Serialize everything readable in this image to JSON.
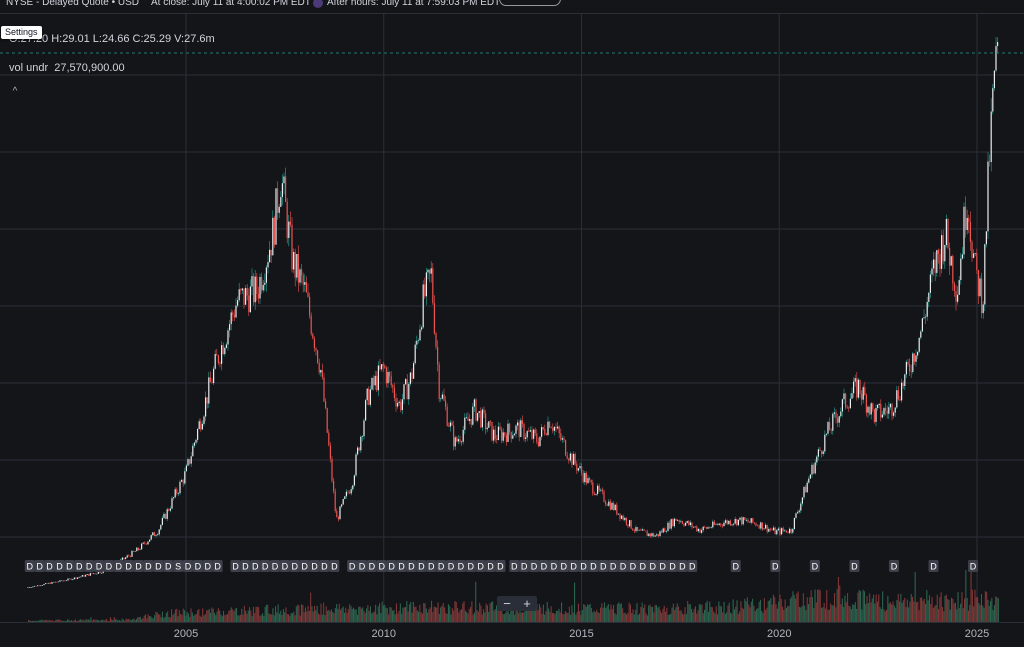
{
  "header": {
    "exchange_label": "NYSE - Delayed Quote • USD",
    "close_time": "At close: July 11 at 4:00:02 PM EDT",
    "after_hours_time": "After hours: July 11 at 7:59:03 PM EDT",
    "after_hours_icon": "moon-icon"
  },
  "legend": {
    "ohlc": "O:27.20  H:29.01  L:24.66  C:25.29  V:27.6m",
    "volume_label": "vol undr",
    "volume_value": "27,570,900.00"
  },
  "controls": {
    "settings_label": "Settings",
    "collapse_symbol": "^",
    "zoom_out_symbol": "−",
    "zoom_in_symbol": "+"
  },
  "colors": {
    "background": "#141519",
    "grid": "#2a2e39",
    "up": "#26a69a",
    "down": "#ef5350",
    "dividend_marker_bg": "#3d404a",
    "dividend_marker_text": "#ffffff",
    "last_price_line": "#26a69a"
  },
  "chart_data": {
    "type": "candlestick",
    "title": "",
    "xlabel": "",
    "ylabel": "",
    "x_ticks": [
      "2005",
      "2010",
      "2015",
      "2020",
      "2025"
    ],
    "x_range": [
      2001.0,
      2025.8
    ],
    "grid": true,
    "price_series_anchors": {
      "x": [
        2001.0,
        2002.0,
        2003.0,
        2003.8,
        2004.3,
        2005.0,
        2005.8,
        2006.3,
        2006.8,
        2007.2,
        2007.4,
        2007.7,
        2008.0,
        2008.4,
        2008.8,
        2009.2,
        2009.6,
        2010.0,
        2010.4,
        2010.7,
        2011.0,
        2011.2,
        2011.4,
        2011.8,
        2012.3,
        2012.8,
        2013.4,
        2013.9,
        2014.2,
        2014.7,
        2015.2,
        2015.8,
        2016.4,
        2016.9,
        2017.4,
        2018.0,
        2018.6,
        2019.0,
        2019.5,
        2019.9,
        2020.3,
        2020.8,
        2021.2,
        2021.6,
        2022.0,
        2022.4,
        2022.8,
        2023.2,
        2023.6,
        2023.9,
        2024.2,
        2024.5,
        2024.75,
        2024.95,
        2025.15,
        2025.3,
        2025.45,
        2025.55
      ],
      "y": [
        0.5,
        0.9,
        1.4,
        2.5,
        3.5,
        6.5,
        12.5,
        15.5,
        16.0,
        19.0,
        22.0,
        17.5,
        16.0,
        12.0,
        4.0,
        6.0,
        10.5,
        12.0,
        10.0,
        11.5,
        15.5,
        16.8,
        11.0,
        8.0,
        9.8,
        8.4,
        8.8,
        8.2,
        9.3,
        7.4,
        5.9,
        4.7,
        3.4,
        3.2,
        4.1,
        3.5,
        3.9,
        4.0,
        3.8,
        3.4,
        3.5,
        6.5,
        8.5,
        10.0,
        11.0,
        9.5,
        9.8,
        11.5,
        14.0,
        17.0,
        19.0,
        16.0,
        21.0,
        17.0,
        15.5,
        22.5,
        27.5,
        28.5
      ]
    },
    "volume_series_anchors": {
      "x": [
        2001.0,
        2003.5,
        2004.5,
        2008.0,
        2011.0,
        2016.5,
        2019.5,
        2020.5,
        2021.5,
        2023.0,
        2025.55
      ],
      "y": [
        0.05,
        0.08,
        0.3,
        0.45,
        0.5,
        0.45,
        0.55,
        0.8,
        0.85,
        0.7,
        0.8
      ]
    },
    "dividend_markers": [
      {
        "x": 2001.05,
        "label": "D"
      },
      {
        "x": 2001.3,
        "label": "D"
      },
      {
        "x": 2001.55,
        "label": "D"
      },
      {
        "x": 2001.8,
        "label": "D"
      },
      {
        "x": 2002.05,
        "label": "D"
      },
      {
        "x": 2002.3,
        "label": "D"
      },
      {
        "x": 2002.55,
        "label": "D"
      },
      {
        "x": 2002.8,
        "label": "D"
      },
      {
        "x": 2003.05,
        "label": "D"
      },
      {
        "x": 2003.3,
        "label": "D"
      },
      {
        "x": 2003.55,
        "label": "D"
      },
      {
        "x": 2003.8,
        "label": "D"
      },
      {
        "x": 2004.05,
        "label": "D"
      },
      {
        "x": 2004.3,
        "label": "D"
      },
      {
        "x": 2004.55,
        "label": "D"
      },
      {
        "x": 2004.8,
        "label": "S"
      },
      {
        "x": 2005.05,
        "label": "D"
      },
      {
        "x": 2005.3,
        "label": "D"
      },
      {
        "x": 2005.55,
        "label": "D"
      },
      {
        "x": 2005.8,
        "label": "D"
      },
      {
        "x": 2006.25,
        "label": "D"
      },
      {
        "x": 2006.5,
        "label": "D"
      },
      {
        "x": 2006.75,
        "label": "D"
      },
      {
        "x": 2007.0,
        "label": "D"
      },
      {
        "x": 2007.25,
        "label": "D"
      },
      {
        "x": 2007.5,
        "label": "D"
      },
      {
        "x": 2007.75,
        "label": "D"
      },
      {
        "x": 2008.0,
        "label": "D"
      },
      {
        "x": 2008.25,
        "label": "D"
      },
      {
        "x": 2008.5,
        "label": "D"
      },
      {
        "x": 2008.75,
        "label": "D"
      },
      {
        "x": 2009.2,
        "label": "D"
      },
      {
        "x": 2009.45,
        "label": "D"
      },
      {
        "x": 2009.7,
        "label": "D"
      },
      {
        "x": 2009.95,
        "label": "D"
      },
      {
        "x": 2010.2,
        "label": "D"
      },
      {
        "x": 2010.45,
        "label": "D"
      },
      {
        "x": 2010.7,
        "label": "D"
      },
      {
        "x": 2010.95,
        "label": "D"
      },
      {
        "x": 2011.2,
        "label": "D"
      },
      {
        "x": 2011.45,
        "label": "D"
      },
      {
        "x": 2011.7,
        "label": "D"
      },
      {
        "x": 2011.95,
        "label": "D"
      },
      {
        "x": 2012.2,
        "label": "D"
      },
      {
        "x": 2012.45,
        "label": "D"
      },
      {
        "x": 2012.7,
        "label": "D"
      },
      {
        "x": 2012.95,
        "label": "D"
      },
      {
        "x": 2013.3,
        "label": "D"
      },
      {
        "x": 2013.55,
        "label": "D"
      },
      {
        "x": 2013.8,
        "label": "D"
      },
      {
        "x": 2014.05,
        "label": "D"
      },
      {
        "x": 2014.3,
        "label": "D"
      },
      {
        "x": 2014.55,
        "label": "D"
      },
      {
        "x": 2014.8,
        "label": "D"
      },
      {
        "x": 2015.05,
        "label": "D"
      },
      {
        "x": 2015.3,
        "label": "D"
      },
      {
        "x": 2015.55,
        "label": "D"
      },
      {
        "x": 2015.8,
        "label": "D"
      },
      {
        "x": 2016.05,
        "label": "D"
      },
      {
        "x": 2016.3,
        "label": "D"
      },
      {
        "x": 2016.55,
        "label": "D"
      },
      {
        "x": 2016.8,
        "label": "D"
      },
      {
        "x": 2017.05,
        "label": "D"
      },
      {
        "x": 2017.3,
        "label": "D"
      },
      {
        "x": 2017.55,
        "label": "D"
      },
      {
        "x": 2017.8,
        "label": "D"
      },
      {
        "x": 2018.9,
        "label": "D"
      },
      {
        "x": 2019.9,
        "label": "D"
      },
      {
        "x": 2020.9,
        "label": "D"
      },
      {
        "x": 2021.9,
        "label": "D"
      },
      {
        "x": 2022.9,
        "label": "D"
      },
      {
        "x": 2023.9,
        "label": "D"
      },
      {
        "x": 2024.9,
        "label": "D"
      }
    ]
  }
}
